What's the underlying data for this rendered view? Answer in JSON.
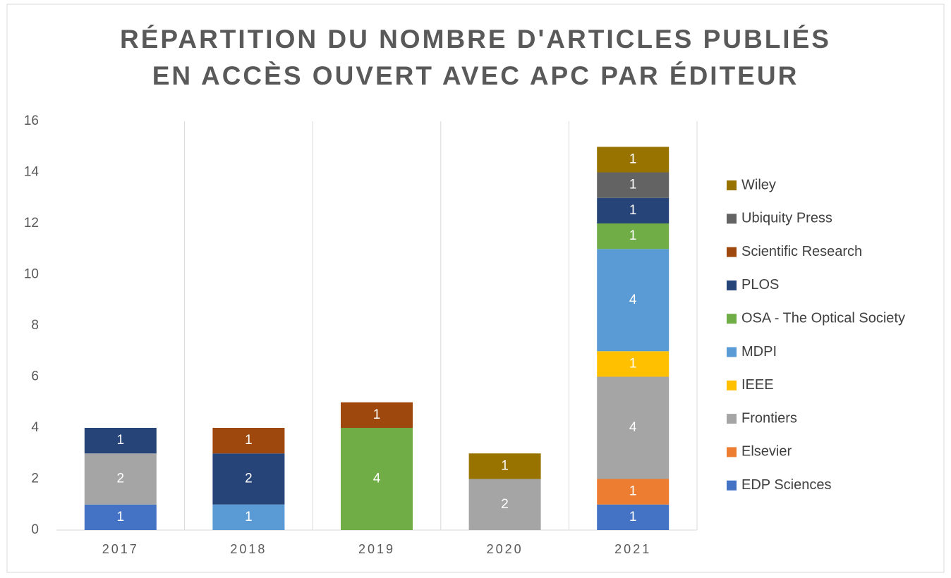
{
  "chart_data": {
    "type": "stacked_bar",
    "title": [
      "RÉPARTITION DU NOMBRE D'ARTICLES PUBLIÉS",
      "EN ACCÈS OUVERT AVEC APC PAR ÉDITEUR"
    ],
    "categories": [
      "2017",
      "2018",
      "2019",
      "2020",
      "2021"
    ],
    "series": [
      {
        "name": "EDP Sciences",
        "color": "#4472c4",
        "values": [
          1,
          null,
          null,
          null,
          1
        ]
      },
      {
        "name": "Elsevier",
        "color": "#ed7d31",
        "values": [
          null,
          null,
          null,
          null,
          1
        ]
      },
      {
        "name": "Frontiers",
        "color": "#a5a5a5",
        "values": [
          2,
          null,
          null,
          2,
          4
        ]
      },
      {
        "name": "IEEE",
        "color": "#ffc000",
        "values": [
          null,
          null,
          null,
          null,
          1
        ]
      },
      {
        "name": "MDPI",
        "color": "#5b9bd5",
        "values": [
          null,
          1,
          null,
          null,
          4
        ]
      },
      {
        "name": "OSA - The Optical Society",
        "color": "#70ad47",
        "values": [
          null,
          null,
          4,
          null,
          1
        ]
      },
      {
        "name": "PLOS",
        "color": "#264478",
        "values": [
          1,
          2,
          null,
          null,
          1
        ]
      },
      {
        "name": "Scientific Research",
        "color": "#9e480e",
        "values": [
          null,
          1,
          1,
          null,
          null
        ]
      },
      {
        "name": "Ubiquity Press",
        "color": "#636363",
        "values": [
          null,
          null,
          null,
          null,
          1
        ]
      },
      {
        "name": "Wiley",
        "color": "#997300",
        "values": [
          null,
          null,
          null,
          1,
          1
        ]
      }
    ],
    "ylim": [
      0,
      16
    ],
    "yticks": [
      0,
      2,
      4,
      6,
      8,
      10,
      12,
      14,
      16
    ],
    "legend": "right"
  }
}
